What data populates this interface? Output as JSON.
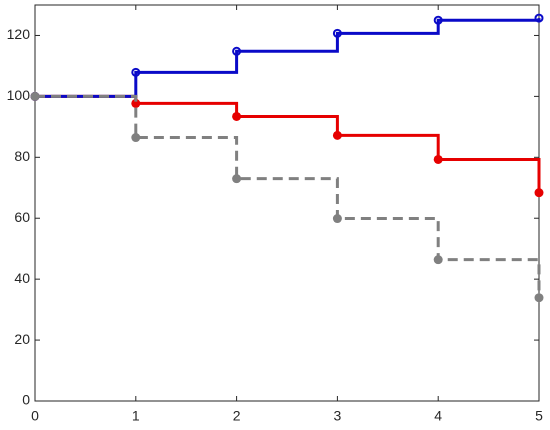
{
  "chart_data": {
    "type": "stairs",
    "x": [
      0,
      1,
      2,
      3,
      4,
      5
    ],
    "series": [
      {
        "color": "#e60000",
        "marker": "filled",
        "dashed": false,
        "values": [
          100,
          97.7,
          93.4,
          87.2,
          79.3,
          68.4
        ]
      },
      {
        "color": "#0a0ac8",
        "marker": "open",
        "dashed": false,
        "values": [
          100,
          107.9,
          114.8,
          120.7,
          125,
          125.7
        ]
      },
      {
        "color": "#808080",
        "marker": "filled",
        "dashed": true,
        "values": [
          100,
          86.5,
          73,
          59.9,
          46.4,
          33.9
        ]
      }
    ],
    "xlim": [
      0,
      5
    ],
    "xticks": [
      0,
      1,
      2,
      3,
      4,
      5
    ],
    "ylim": [
      0,
      130
    ],
    "yticks": [
      0,
      20,
      40,
      60,
      80,
      100,
      120
    ],
    "grid": false
  }
}
